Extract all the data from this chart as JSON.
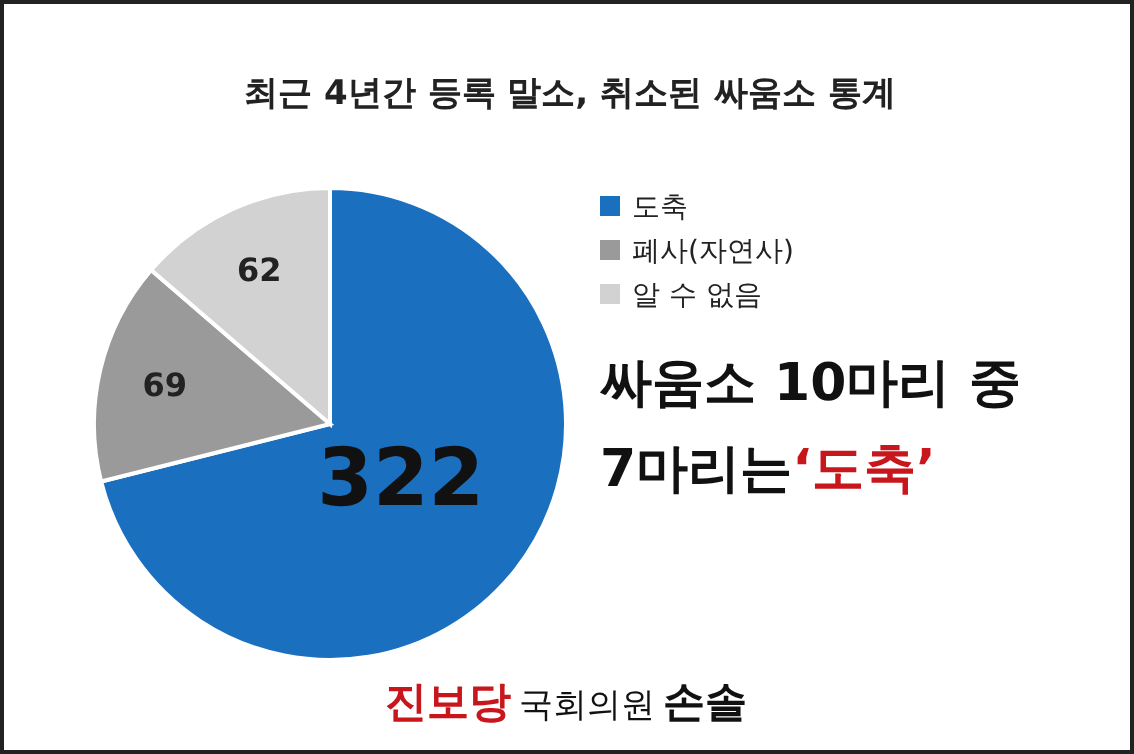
{
  "chart_data": {
    "type": "pie",
    "title": "최근 4년간 등록 말소, 취소된 싸움소 통계",
    "categories": [
      "도축",
      "폐사(자연사)",
      "알 수 없음"
    ],
    "values": [
      322,
      69,
      62
    ],
    "colors": [
      "#1b6fbf",
      "#9a9a9a",
      "#d2d2d2"
    ],
    "data_labels": true,
    "legend": "top right",
    "annotations": [
      "싸움소 10마리 중",
      "7마리는",
      "‘도축’",
      "진보당",
      "국회의원",
      "손솔"
    ]
  }
}
